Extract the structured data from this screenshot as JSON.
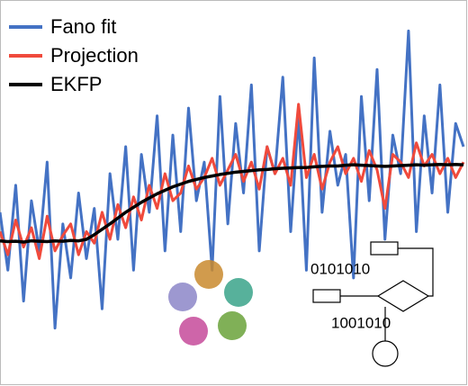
{
  "chart_data": {
    "type": "line",
    "ylim": [
      0,
      100
    ],
    "series": [
      {
        "name": "Fano fit",
        "color": "#4472c4",
        "values": [
          45,
          30,
          52,
          22,
          48,
          35,
          58,
          15,
          42,
          28,
          50,
          33,
          46,
          20,
          55,
          38,
          62,
          30,
          60,
          45,
          70,
          35,
          65,
          40,
          72,
          48,
          58,
          30,
          75,
          42,
          68,
          50,
          78,
          35,
          62,
          55,
          80,
          40,
          70,
          30,
          85,
          45,
          66,
          52,
          60,
          28,
          75,
          48,
          82,
          38,
          65,
          55,
          92,
          40,
          70,
          50,
          78,
          45,
          68,
          62
        ]
      },
      {
        "name": "Projection",
        "color": "#f04a3c",
        "values": [
          40,
          34,
          43,
          36,
          41,
          33,
          44,
          35,
          39,
          42,
          34,
          40,
          37,
          45,
          38,
          47,
          41,
          49,
          43,
          52,
          46,
          55,
          48,
          50,
          57,
          51,
          54,
          59,
          52,
          56,
          60,
          53,
          58,
          51,
          62,
          55,
          59,
          52,
          73,
          54,
          60,
          51,
          58,
          62,
          55,
          59,
          53,
          61,
          56,
          46,
          60,
          58,
          54,
          63,
          57,
          60,
          55,
          59,
          54,
          58
        ]
      },
      {
        "name": "EKFP",
        "color": "#000000",
        "values": [
          37.6,
          37.4,
          37.5,
          37.3,
          37.6,
          37.5,
          37.4,
          37.6,
          37.5,
          37.7,
          37.6,
          38.0,
          39.2,
          40.6,
          42.0,
          43.5,
          45.0,
          46.3,
          47.6,
          48.7,
          49.8,
          50.7,
          51.6,
          52.3,
          53.0,
          53.5,
          54.0,
          54.4,
          54.8,
          55.1,
          55.4,
          55.6,
          55.8,
          56.0,
          56.1,
          56.3,
          56.4,
          56.5,
          56.6,
          56.6,
          56.8,
          56.9,
          57.0,
          57.0,
          57.2,
          57.3,
          57.2,
          57.1,
          57.0,
          56.9,
          57.0,
          57.1,
          57.2,
          57.3,
          57.2,
          57.3,
          57.4,
          57.3,
          57.4,
          57.3
        ]
      }
    ],
    "annotations": [
      "0101010",
      "1001010"
    ]
  }
}
